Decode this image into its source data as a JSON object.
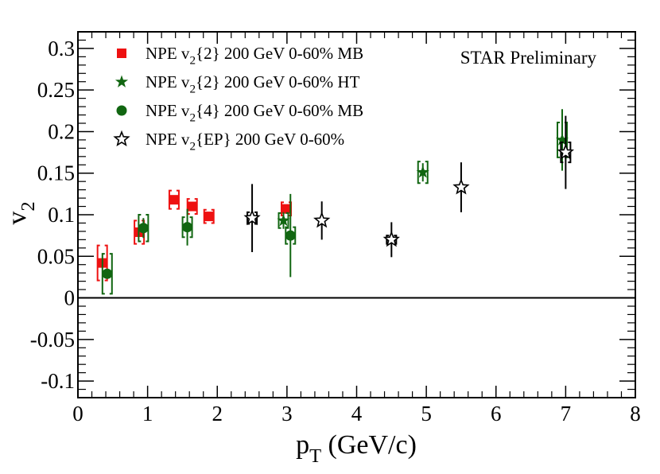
{
  "chart_data": {
    "type": "scatter",
    "title": "",
    "annotation": "STAR Preliminary",
    "xlabel": {
      "main": "p",
      "sub": "T",
      "rest": " (GeV/c)"
    },
    "ylabel": {
      "main": "v",
      "sub": "2"
    },
    "xlim": [
      0,
      8
    ],
    "ylim": [
      -0.12,
      0.32
    ],
    "x_ticks": [
      {
        "value": 0,
        "label": "0"
      },
      {
        "value": 1,
        "label": "1"
      },
      {
        "value": 2,
        "label": "2"
      },
      {
        "value": 3,
        "label": "3"
      },
      {
        "value": 4,
        "label": "4"
      },
      {
        "value": 5,
        "label": "5"
      },
      {
        "value": 6,
        "label": "6"
      },
      {
        "value": 7,
        "label": "7"
      },
      {
        "value": 8,
        "label": "8"
      }
    ],
    "y_ticks": [
      {
        "value": -0.1,
        "label": "-0.1"
      },
      {
        "value": -0.05,
        "label": "-0.05"
      },
      {
        "value": 0,
        "label": "0"
      },
      {
        "value": 0.05,
        "label": "0.05"
      },
      {
        "value": 0.1,
        "label": "0.1"
      },
      {
        "value": 0.15,
        "label": "0.15"
      },
      {
        "value": 0.2,
        "label": "0.2"
      },
      {
        "value": 0.25,
        "label": "0.25"
      },
      {
        "value": 0.3,
        "label": "0.3"
      }
    ],
    "reference_line_y": 0,
    "grid": false,
    "legend_position": "top-left",
    "series": [
      {
        "id": "mb2",
        "legend": {
          "pre": "NPE v",
          "sub": "2",
          "post": "{2} 200 GeV 0-60% MB"
        },
        "marker": "square",
        "color": "#ee1111",
        "points": [
          {
            "x": 0.35,
            "y": 0.042,
            "syst": 0.021
          },
          {
            "x": 0.88,
            "y": 0.079,
            "syst": 0.014
          },
          {
            "x": 1.38,
            "y": 0.118,
            "syst": 0.011
          },
          {
            "x": 1.64,
            "y": 0.11,
            "syst": 0.009
          },
          {
            "x": 1.88,
            "y": 0.098,
            "syst": 0.008
          },
          {
            "x": 2.99,
            "y": 0.107,
            "syst": 0.008
          }
        ]
      },
      {
        "id": "ht2",
        "legend": {
          "pre": "NPE v",
          "sub": "2",
          "post": "{2} 200 GeV 0-60% HT"
        },
        "marker": "star",
        "color": "#116611",
        "points": [
          {
            "x": 2.95,
            "y": 0.093,
            "err": 0.01,
            "syst": 0.009
          },
          {
            "x": 4.95,
            "y": 0.151,
            "err": 0.011,
            "syst": 0.013
          },
          {
            "x": 6.95,
            "y": 0.19,
            "err": 0.037,
            "syst": 0.021
          }
        ]
      },
      {
        "id": "mb4",
        "legend": {
          "pre": "NPE v",
          "sub": "2",
          "post": "{4} 200 GeV 0-60% MB"
        },
        "marker": "circle",
        "color": "#116611",
        "points": [
          {
            "x": 0.42,
            "y": 0.029,
            "syst": 0.024
          },
          {
            "x": 0.94,
            "y": 0.084,
            "err": 0.012,
            "syst": 0.016
          },
          {
            "x": 1.57,
            "y": 0.085,
            "err": 0.022,
            "syst": 0.012
          },
          {
            "x": 3.05,
            "y": 0.075,
            "err": 0.05,
            "syst": 0.01
          }
        ]
      },
      {
        "id": "ep",
        "legend": {
          "pre": "NPE v",
          "sub": "2",
          "post": "{EP} 200 GeV 0-60%"
        },
        "marker": "open-star",
        "color": "#000000",
        "points": [
          {
            "x": 2.5,
            "y": 0.096,
            "err": 0.041,
            "syst": 0.007
          },
          {
            "x": 3.5,
            "y": 0.093,
            "err": 0.023
          },
          {
            "x": 4.5,
            "y": 0.07,
            "err": 0.021,
            "syst": 0.005
          },
          {
            "x": 5.5,
            "y": 0.133,
            "err": 0.03
          },
          {
            "x": 7.0,
            "y": 0.175,
            "err": 0.044,
            "syst": 0.012
          }
        ]
      }
    ]
  }
}
